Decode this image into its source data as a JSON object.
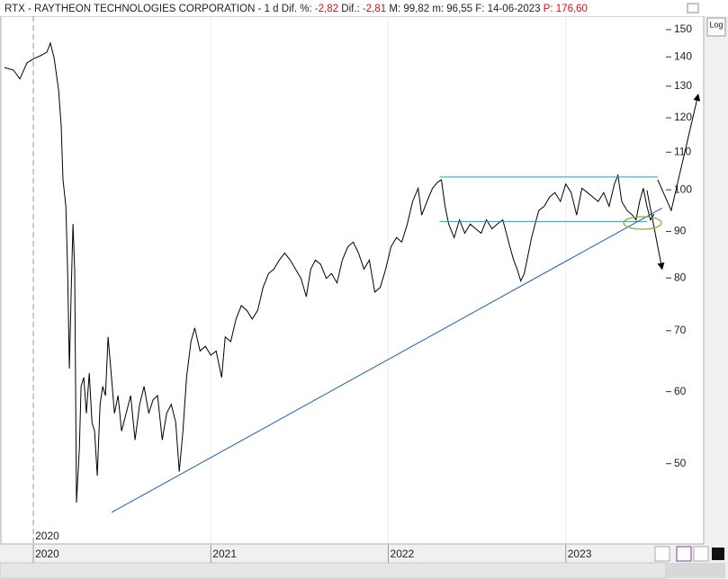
{
  "header": {
    "title": "RTX - RAYTHEON TECHNOLOGIES CORPORATION - 1 d",
    "dif_pct_label": "Dif. %:",
    "dif_pct": "-2,82",
    "dif_label": "Dif.:",
    "dif": "-2,81",
    "info": "M: 99,82  m: 96,55  F: 14-06-2023",
    "price": "P: 176,60",
    "log_button": "Log"
  },
  "chart_data": {
    "type": "line",
    "log_scale": true,
    "xgrid": true,
    "period_label": "2020",
    "xlim": [
      2019.812,
      2023.772
    ],
    "xticks": [
      2020,
      2021,
      2022,
      2023
    ],
    "ylim": [
      40.9,
      155.2
    ],
    "yticks": [
      50,
      60,
      70,
      80,
      90,
      100,
      110,
      120,
      130,
      140,
      150
    ],
    "series": [
      {
        "name": "RTX",
        "color": "#000000",
        "x": [
          2019.837,
          2019.888,
          2019.924,
          2019.964,
          2020.005,
          2020.04,
          2020.076,
          2020.096,
          2020.117,
          2020.142,
          2020.157,
          2020.167,
          2020.183,
          2020.193,
          2020.203,
          2020.213,
          2020.223,
          2020.233,
          2020.243,
          2020.259,
          2020.269,
          2020.284,
          2020.299,
          2020.315,
          2020.33,
          2020.345,
          2020.36,
          2020.376,
          2020.391,
          2020.406,
          2020.421,
          2020.436,
          2020.457,
          2020.477,
          2020.497,
          2020.523,
          2020.548,
          2020.573,
          2020.599,
          2020.624,
          2020.65,
          2020.675,
          2020.7,
          2020.726,
          2020.751,
          2020.777,
          2020.802,
          2020.822,
          2020.843,
          2020.863,
          2020.888,
          2020.909,
          2020.939,
          2020.969,
          2021.0,
          2021.03,
          2021.061,
          2021.081,
          2021.112,
          2021.142,
          2021.172,
          2021.203,
          2021.233,
          2021.264,
          2021.294,
          2021.325,
          2021.355,
          2021.386,
          2021.416,
          2021.447,
          2021.477,
          2021.508,
          2021.538,
          2021.563,
          2021.589,
          2021.619,
          2021.65,
          2021.68,
          2021.711,
          2021.741,
          2021.772,
          2021.802,
          2021.832,
          2021.863,
          2021.893,
          2021.924,
          2021.954,
          2021.985,
          2022.015,
          2022.046,
          2022.076,
          2022.107,
          2022.137,
          2022.168,
          2022.188,
          2022.218,
          2022.249,
          2022.279,
          2022.299,
          2022.32,
          2022.34,
          2022.371,
          2022.401,
          2022.431,
          2022.462,
          2022.492,
          2022.523,
          2022.553,
          2022.584,
          2022.614,
          2022.645,
          2022.665,
          2022.685,
          2022.706,
          2022.726,
          2022.746,
          2022.766,
          2022.787,
          2022.807,
          2022.827,
          2022.848,
          2022.878,
          2022.909,
          2022.939,
          2022.97,
          2023.0,
          2023.03,
          2023.061,
          2023.091,
          2023.122,
          2023.152,
          2023.183,
          2023.213,
          2023.244,
          2023.274,
          2023.294,
          2023.315,
          2023.345,
          2023.376,
          2023.396,
          2023.416,
          2023.437,
          2023.457,
          2023.477,
          2023.497
        ],
        "values": [
          136.3,
          135.4,
          132.4,
          137.9,
          139.5,
          140.4,
          141.7,
          145.0,
          139.5,
          128.8,
          117.6,
          102.6,
          95.9,
          81.8,
          63.6,
          77.2,
          91.7,
          81.8,
          45.3,
          51.9,
          60.8,
          62.2,
          56.8,
          62.9,
          55.5,
          54.3,
          48.5,
          58.1,
          60.8,
          59.4,
          68.9,
          63.6,
          56.8,
          59.4,
          54.3,
          56.8,
          59.4,
          53.1,
          58.1,
          60.8,
          56.8,
          58.8,
          59.4,
          53.1,
          56.8,
          58.1,
          55.5,
          49.0,
          54.3,
          62.2,
          68.1,
          70.5,
          66.5,
          67.3,
          65.8,
          66.5,
          62.2,
          68.9,
          68.1,
          72.1,
          74.6,
          73.7,
          72.1,
          73.7,
          78.1,
          80.9,
          81.8,
          83.7,
          85.2,
          83.7,
          81.8,
          79.9,
          76.3,
          81.8,
          83.7,
          82.8,
          79.9,
          80.9,
          79.0,
          83.7,
          86.6,
          87.6,
          85.2,
          81.8,
          83.7,
          77.2,
          78.1,
          81.8,
          86.6,
          88.6,
          87.6,
          91.7,
          97.1,
          100.4,
          93.8,
          97.1,
          100.4,
          102.0,
          102.6,
          95.9,
          91.7,
          88.6,
          92.7,
          89.6,
          91.7,
          90.6,
          89.6,
          92.7,
          90.6,
          91.7,
          92.7,
          89.6,
          86.6,
          83.7,
          81.8,
          79.4,
          80.9,
          84.7,
          88.6,
          91.7,
          94.9,
          95.9,
          98.2,
          99.3,
          97.1,
          101.5,
          99.3,
          93.8,
          100.4,
          99.3,
          98.2,
          97.1,
          99.3,
          95.9,
          101.5,
          103.8,
          97.1,
          94.9,
          93.8,
          92.7,
          97.1,
          100.4,
          95.9,
          92.7,
          94.0
        ]
      }
    ],
    "drawings": [
      {
        "name": "channel-top",
        "color": "#1aa3b8",
        "x": [
          2022.289,
          2023.518
        ],
        "y": [
          103.3,
          103.3
        ]
      },
      {
        "name": "channel-bottom",
        "color": "#1aa3b8",
        "x": [
          2022.289,
          2023.457
        ],
        "y": [
          92.3,
          92.3
        ]
      },
      {
        "name": "trend-line",
        "color": "#1f5fa8",
        "x": [
          2020.441,
          2023.543
        ],
        "y": [
          44.2,
          95.5
        ]
      },
      {
        "name": "projection-up",
        "color": "#000000",
        "x": [
          2023.518,
          2023.594,
          2023.746
        ],
        "y": [
          102.6,
          94.9,
          127.3
        ]
      },
      {
        "name": "projection-down",
        "color": "#000000",
        "x": [
          2023.457,
          2023.543
        ],
        "y": [
          99.9,
          81.8
        ]
      }
    ]
  }
}
